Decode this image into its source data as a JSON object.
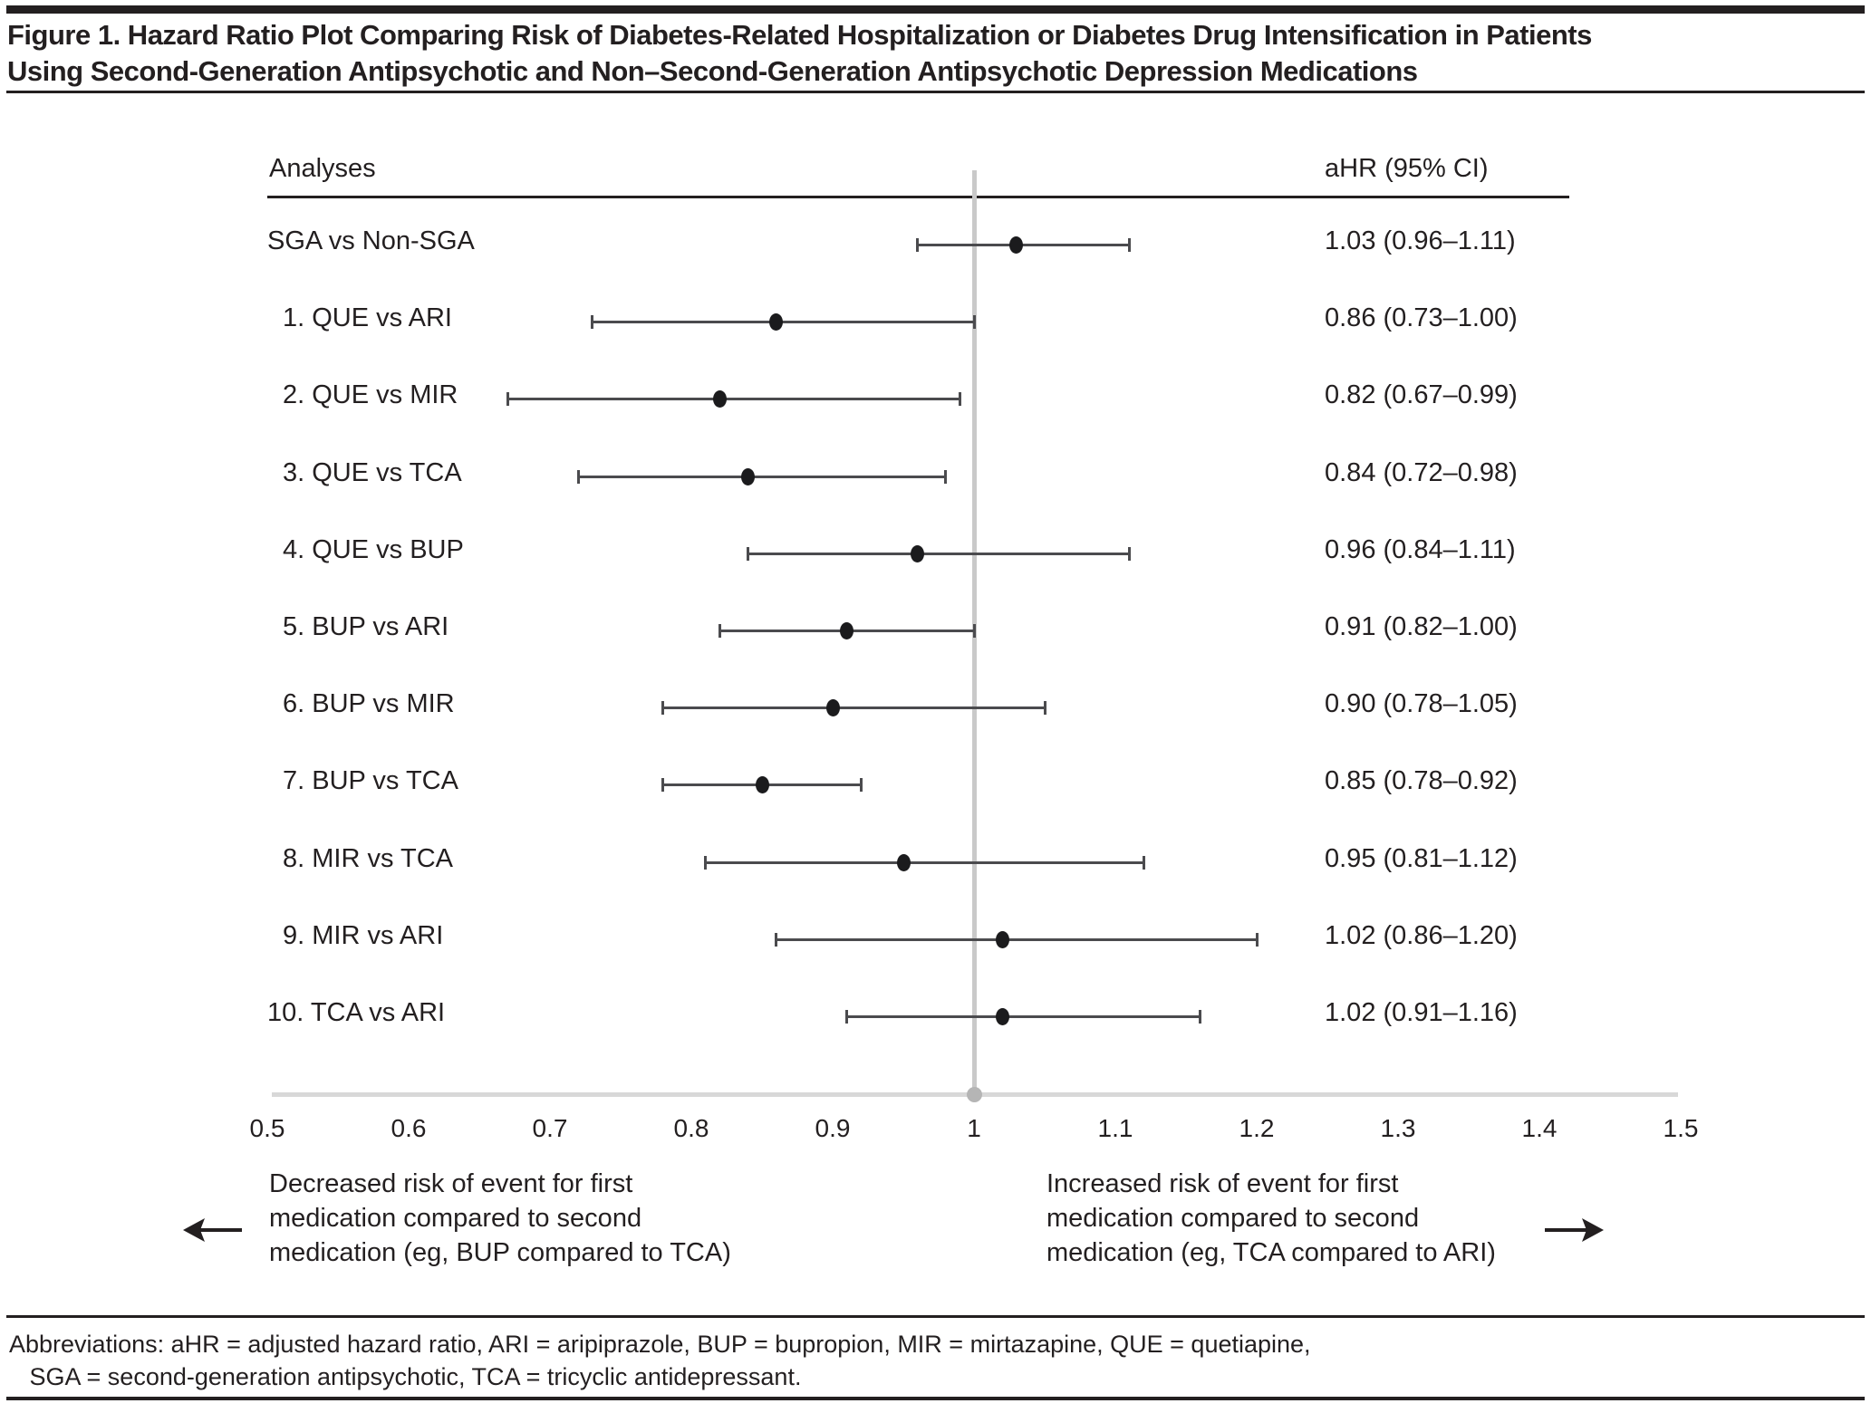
{
  "title": "Figure 1. Hazard Ratio Plot Comparing Risk of Diabetes-Related Hospitalization or Diabetes Drug Intensification in Patients\nUsing Second-Generation Antipsychotic and Non–Second-Generation Antipsychotic Depression Medications",
  "chart_data": {
    "type": "forest",
    "column_headers": {
      "analyses": "Analyses",
      "ahr": "aHR (95% CI)"
    },
    "x_axis": {
      "min": 0.5,
      "max": 1.5,
      "tick_values": [
        0.5,
        0.6,
        0.7,
        0.8,
        0.9,
        1,
        1.1,
        1.2,
        1.3,
        1.4,
        1.5
      ],
      "tick_labels": [
        "0.5",
        "0.6",
        "0.7",
        "0.8",
        "0.9",
        "1",
        "1.1",
        "1.2",
        "1.3",
        "1.4",
        "1.5"
      ],
      "reference_line": 1
    },
    "rows": [
      {
        "label": "SGA vs Non-SGA",
        "indent": false,
        "ahr": 1.03,
        "ci_low": 0.96,
        "ci_high": 1.11,
        "ahr_text": "1.03 (0.96–1.11)"
      },
      {
        "label": "1. QUE vs ARI",
        "indent": true,
        "ahr": 0.86,
        "ci_low": 0.73,
        "ci_high": 1.0,
        "ahr_text": "0.86 (0.73–1.00)"
      },
      {
        "label": "2. QUE vs MIR",
        "indent": true,
        "ahr": 0.82,
        "ci_low": 0.67,
        "ci_high": 0.99,
        "ahr_text": "0.82 (0.67–0.99)"
      },
      {
        "label": "3. QUE vs TCA",
        "indent": true,
        "ahr": 0.84,
        "ci_low": 0.72,
        "ci_high": 0.98,
        "ahr_text": "0.84 (0.72–0.98)"
      },
      {
        "label": "4. QUE vs BUP",
        "indent": true,
        "ahr": 0.96,
        "ci_low": 0.84,
        "ci_high": 1.11,
        "ahr_text": "0.96 (0.84–1.11)"
      },
      {
        "label": "5. BUP vs ARI",
        "indent": true,
        "ahr": 0.91,
        "ci_low": 0.82,
        "ci_high": 1.0,
        "ahr_text": "0.91 (0.82–1.00)"
      },
      {
        "label": "6. BUP vs MIR",
        "indent": true,
        "ahr": 0.9,
        "ci_low": 0.78,
        "ci_high": 1.05,
        "ahr_text": "0.90 (0.78–1.05)"
      },
      {
        "label": "7. BUP vs TCA",
        "indent": true,
        "ahr": 0.85,
        "ci_low": 0.78,
        "ci_high": 0.92,
        "ahr_text": "0.85 (0.78–0.92)"
      },
      {
        "label": "8. MIR vs TCA",
        "indent": true,
        "ahr": 0.95,
        "ci_low": 0.81,
        "ci_high": 1.12,
        "ahr_text": "0.95 (0.81–1.12)"
      },
      {
        "label": "9. MIR vs ARI",
        "indent": true,
        "ahr": 1.02,
        "ci_low": 0.86,
        "ci_high": 1.2,
        "ahr_text": "1.02 (0.86–1.20)"
      },
      {
        "label": "10. TCA vs ARI",
        "indent": false,
        "ahr": 1.02,
        "ci_low": 0.91,
        "ci_high": 1.16,
        "ahr_text": "1.02 (0.91–1.16)"
      }
    ],
    "direction_notes": {
      "left": "Decreased risk of event for first\nmedication compared to second\nmedication (eg, BUP compared to TCA)",
      "right": "Increased risk of event for first\nmedication compared to second\nmedication (eg, TCA compared to ARI)"
    }
  },
  "footer": {
    "abbreviations": "Abbreviations: aHR = adjusted hazard ratio, ARI = aripiprazole, BUP = bupropion, MIR = mirtazapine, QUE = quetiapine,\n   SGA = second-generation antipsychotic, TCA = tricyclic antidepressant."
  },
  "colors": {
    "text": "#231f20",
    "ci_bar": "#4b4b4e",
    "marker": "#1b1b1d",
    "reference_line": "#c9c9c9",
    "axis_line": "#d8d8d8",
    "axis_dot": "#b5b5b5"
  }
}
